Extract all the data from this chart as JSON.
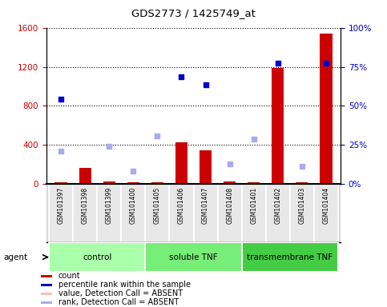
{
  "title": "GDS2773 / 1425749_at",
  "samples": [
    "GSM101397",
    "GSM101398",
    "GSM101399",
    "GSM101400",
    "GSM101405",
    "GSM101406",
    "GSM101407",
    "GSM101408",
    "GSM101401",
    "GSM101402",
    "GSM101403",
    "GSM101404"
  ],
  "groups": [
    {
      "name": "control",
      "start": 0,
      "end": 4,
      "color": "#aaffaa"
    },
    {
      "name": "soluble TNF",
      "start": 4,
      "end": 8,
      "color": "#77ee77"
    },
    {
      "name": "transmembrane TNF",
      "start": 8,
      "end": 12,
      "color": "#44cc44"
    }
  ],
  "count_values": [
    20,
    170,
    30,
    20,
    20,
    430,
    350,
    30,
    20,
    1190,
    20,
    1540
  ],
  "rank_values": [
    870,
    null,
    null,
    null,
    null,
    1100,
    1020,
    null,
    null,
    1240,
    null,
    1240
  ],
  "absent_value_values": [
    null,
    null,
    null,
    null,
    null,
    null,
    null,
    null,
    null,
    null,
    null,
    null
  ],
  "absent_rank_values": [
    340,
    null,
    390,
    130,
    490,
    null,
    null,
    210,
    460,
    null,
    180,
    null
  ],
  "count_color": "#cc0000",
  "rank_color": "#0000cc",
  "absent_value_color": "#ffbbbb",
  "absent_rank_color": "#aaaaee",
  "ylim_left": [
    0,
    1600
  ],
  "ylim_right": [
    0,
    100
  ],
  "yticks_left": [
    0,
    400,
    800,
    1200,
    1600
  ],
  "yticks_right": [
    0,
    25,
    50,
    75,
    100
  ],
  "ylabel_left_color": "#cc0000",
  "ylabel_right_color": "#0000cc",
  "fig_width": 4.83,
  "fig_height": 3.84,
  "dpi": 100
}
